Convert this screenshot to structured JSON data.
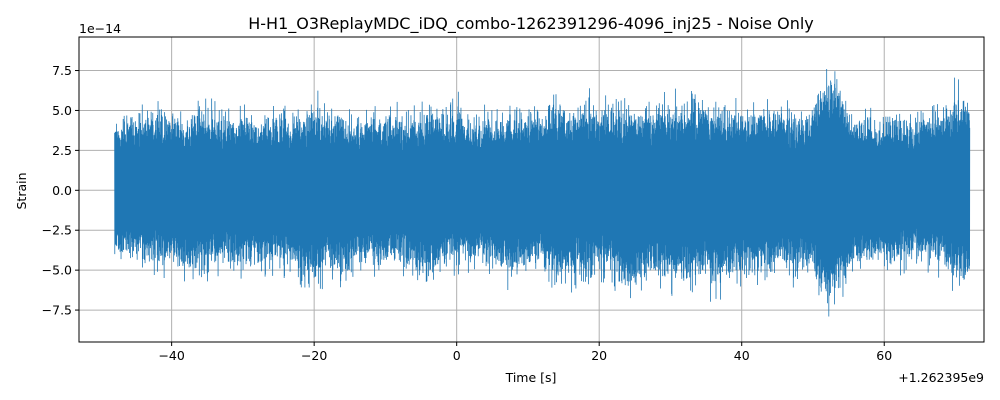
{
  "chart_data": {
    "type": "line",
    "title": "H-H1_O3ReplayMDC_iDQ_combo-1262391296-4096_inj25 - Noise Only",
    "xlabel": "Time [s]",
    "ylabel": "Strain",
    "x_offset_label": "+1.262395e9",
    "y_scale_label": "1e−14",
    "xlim": [
      -53,
      74
    ],
    "ylim": [
      -9.5,
      9.6
    ],
    "x_ticks": [
      -40,
      -20,
      0,
      20,
      40,
      60
    ],
    "x_tick_labels": [
      "−40",
      "−20",
      "0",
      "20",
      "40",
      "60"
    ],
    "y_ticks": [
      -7.5,
      -5.0,
      -2.5,
      0.0,
      2.5,
      5.0,
      7.5
    ],
    "y_tick_labels": [
      "−7.5",
      "−5.0",
      "−2.5",
      "0.0",
      "2.5",
      "5.0",
      "7.5"
    ],
    "grid": true,
    "series": [
      {
        "color": "#1f77b4",
        "x_range": [
          -48,
          72
        ],
        "envelope": {
          "x": [
            -48,
            -46,
            -44,
            -42,
            -40,
            -38,
            -36,
            -34,
            -32,
            -30,
            -28,
            -26,
            -24,
            -22,
            -20,
            -18,
            -16,
            -14,
            -12,
            -10,
            -8,
            -6,
            -4,
            -2,
            0,
            2,
            4,
            6,
            8,
            10,
            12,
            14,
            16,
            18,
            20,
            22,
            24,
            26,
            28,
            30,
            32,
            34,
            36,
            38,
            40,
            42,
            44,
            46,
            48,
            50,
            52,
            54,
            56,
            58,
            60,
            62,
            64,
            66,
            68,
            70,
            72
          ],
          "upper": [
            5.1,
            5.5,
            5.6,
            6.0,
            5.7,
            5.3,
            6.6,
            5.8,
            5.4,
            5.6,
            5.3,
            5.7,
            5.4,
            5.8,
            6.4,
            5.9,
            5.5,
            5.4,
            5.6,
            5.8,
            5.6,
            5.3,
            6.4,
            5.6,
            6.7,
            5.2,
            5.6,
            5.8,
            6.0,
            5.8,
            5.6,
            6.6,
            5.5,
            7.0,
            6.1,
            6.5,
            6.4,
            5.8,
            6.8,
            6.6,
            6.6,
            6.7,
            6.5,
            6.3,
            6.0,
            5.7,
            6.4,
            5.7,
            5.5,
            6.0,
            8.8,
            7.2,
            5.6,
            5.5,
            5.4,
            5.5,
            5.2,
            6.3,
            5.4,
            7.5,
            6.8
          ],
          "lower": [
            -5.1,
            -4.9,
            -5.4,
            -5.8,
            -5.6,
            -5.8,
            -6.1,
            -5.7,
            -5.5,
            -5.9,
            -5.5,
            -5.4,
            -5.6,
            -6.8,
            -7.0,
            -5.8,
            -6.3,
            -5.5,
            -5.6,
            -5.4,
            -5.5,
            -6.0,
            -7.3,
            -5.6,
            -5.4,
            -5.3,
            -5.6,
            -6.0,
            -6.5,
            -5.8,
            -5.4,
            -7.0,
            -6.8,
            -6.4,
            -5.8,
            -6.2,
            -7.9,
            -6.8,
            -6.3,
            -7.1,
            -6.5,
            -6.3,
            -7.2,
            -6.7,
            -6.3,
            -6.6,
            -6.2,
            -5.8,
            -6.3,
            -6.0,
            -8.7,
            -7.0,
            -5.6,
            -5.5,
            -5.4,
            -5.5,
            -5.3,
            -5.4,
            -5.7,
            -6.7,
            -7.0
          ]
        }
      }
    ]
  }
}
